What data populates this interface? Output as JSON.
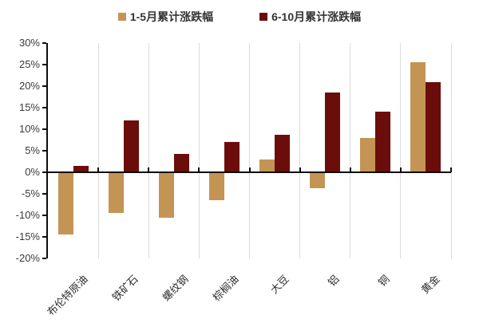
{
  "chart_data": {
    "type": "bar",
    "title": "",
    "xlabel": "",
    "ylabel": "",
    "categories": [
      "布伦特原油",
      "铁矿石",
      "螺纹钢",
      "棕榈油",
      "大豆",
      "铝",
      "铜",
      "黄金"
    ],
    "series": [
      {
        "name": "1-5月累计涨跌幅",
        "color": "#c49455",
        "values": [
          -14.5,
          -9.5,
          -10.5,
          -6.5,
          3,
          -3.7,
          8,
          25.5
        ]
      },
      {
        "name": "6-10月累计涨跌幅",
        "color": "#6b0d0a",
        "values": [
          1.5,
          12,
          4.2,
          7,
          8.7,
          18.6,
          14,
          21
        ]
      }
    ],
    "ylim": [
      -20,
      30
    ],
    "ytick_step": 5,
    "ytick_labels": [
      "30%",
      "25%",
      "20%",
      "15%",
      "10%",
      "5%",
      "0%",
      "-5%",
      "-10%",
      "-15%",
      "-20%"
    ],
    "unit": "%",
    "grid": "vertical-only",
    "legend_position": "top-center",
    "axis_color": "#0d0d0d",
    "gridline_color": "#dbdbdb"
  }
}
